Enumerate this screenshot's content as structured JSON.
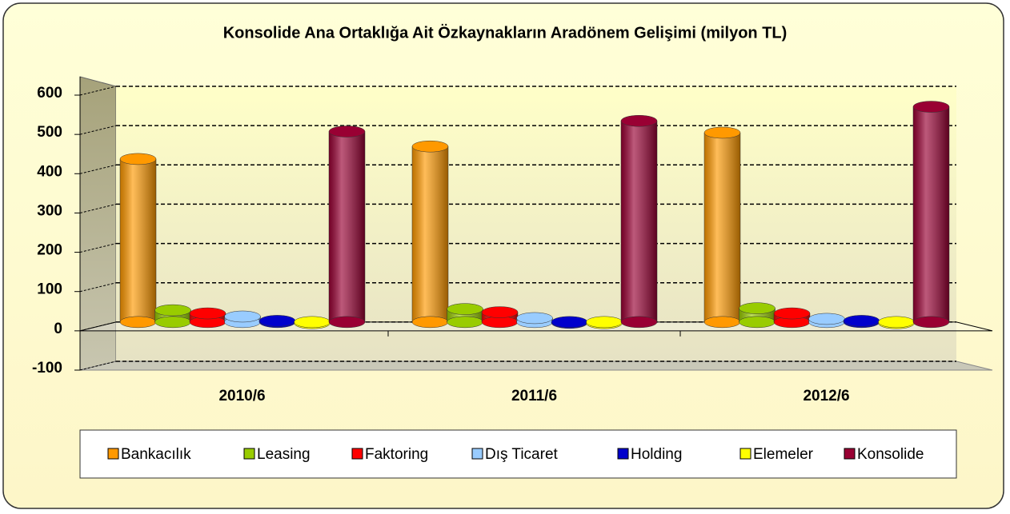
{
  "chart_data": {
    "type": "bar3d",
    "title": "Konsolide Ana Ortaklığa Ait Özkaynakların Aradönem Gelişimi (milyon TL)",
    "categories": [
      "2010/6",
      "2011/6",
      "2012/6"
    ],
    "series": [
      {
        "name": "Bankacılık",
        "color": "#ff9900",
        "values": [
          415,
          447,
          482
        ]
      },
      {
        "name": "Leasing",
        "color": "#99cc00",
        "values": [
          30,
          33,
          35
        ]
      },
      {
        "name": "Faktoring",
        "color": "#ff0000",
        "values": [
          22,
          25,
          22
        ]
      },
      {
        "name": "Dış Ticaret",
        "color": "#99ccff",
        "values": [
          14,
          10,
          8
        ]
      },
      {
        "name": "Holding",
        "color": "#0000cc",
        "values": [
          3,
          -2,
          3
        ]
      },
      {
        "name": "Elemeler",
        "color": "#ffff00",
        "values": [
          -3,
          -3,
          -3
        ]
      },
      {
        "name": "Konsolide",
        "color": "#990033",
        "values": [
          485,
          512,
          548
        ]
      }
    ],
    "ylim": [
      -100,
      600
    ],
    "yticks": [
      -100,
      0,
      100,
      200,
      300,
      400,
      500,
      600
    ],
    "grid": true,
    "legend": "bottom"
  }
}
